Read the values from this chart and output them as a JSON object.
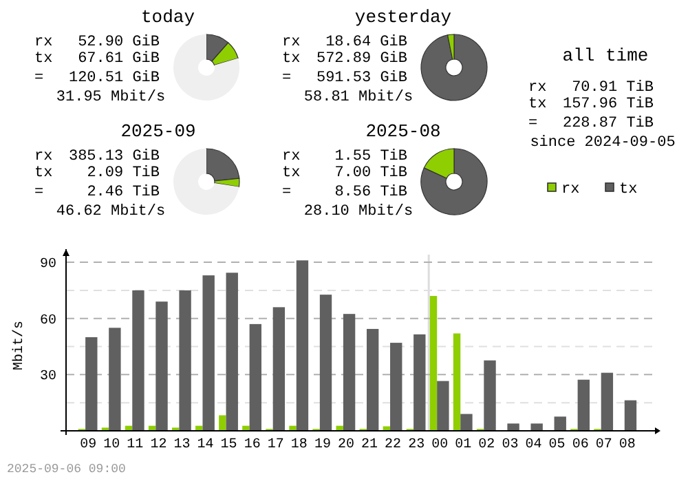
{
  "chart_data": [
    {
      "type": "donut",
      "title": "today",
      "categories": [
        null,
        null,
        null
      ],
      "values": [
        11.5,
        9.0,
        79.5
      ],
      "colors": [
        "#606060",
        "#8fce00",
        "#efefef"
      ],
      "annotations": [
        "rx 52.90 GiB",
        "tx 67.61 GiB",
        "= 120.51 GiB",
        "31.95 Mbit/s"
      ]
    },
    {
      "type": "donut",
      "title": "yesterday",
      "categories": [
        null,
        null
      ],
      "values": [
        96.85,
        3.15
      ],
      "colors": [
        "#606060",
        "#8fce00"
      ],
      "annotations": [
        "rx 18.64 GiB",
        "tx 572.89 GiB",
        "= 591.53 GiB",
        "58.81 Mbit/s"
      ]
    },
    {
      "type": "donut",
      "title": "2025-09",
      "categories": [
        null,
        null,
        null
      ],
      "values": [
        23.4,
        4.1,
        72.5
      ],
      "colors": [
        "#606060",
        "#8fce00",
        "#efefef"
      ],
      "annotations": [
        "rx 385.13 GiB",
        "tx 2.09 TiB",
        "= 2.46 TiB",
        "46.62 Mbit/s"
      ]
    },
    {
      "type": "donut",
      "title": "2025-08",
      "categories": [
        null,
        null
      ],
      "values": [
        81.9,
        18.1
      ],
      "colors": [
        "#606060",
        "#8fce00"
      ],
      "annotations": [
        "rx 1.55 TiB",
        "tx 7.00 TiB",
        "= 8.56 TiB",
        "28.10 Mbit/s"
      ]
    },
    {
      "type": "other",
      "title": "all time",
      "annotations": [
        "rx 70.91 TiB",
        "tx 157.96 TiB",
        "= 228.87 TiB",
        "since 2024-09-05"
      ]
    },
    {
      "type": "bar",
      "ylabel": "Mbit/s",
      "categories": [
        "09",
        "10",
        "11",
        "12",
        "13",
        "14",
        "15",
        "16",
        "17",
        "18",
        "19",
        "20",
        "21",
        "22",
        "23",
        "00",
        "01",
        "02",
        "03",
        "04",
        "05",
        "06",
        "07",
        "08"
      ],
      "series": [
        {
          "name": "rx",
          "color": "#8fce00",
          "values": [
            1,
            1.7,
            2.7,
            2.7,
            1.7,
            2.7,
            8.3,
            2.7,
            1,
            2.7,
            1,
            2.7,
            1,
            2.4,
            1,
            72,
            52,
            1,
            0,
            0,
            0,
            1,
            1,
            0
          ]
        },
        {
          "name": "tx",
          "color": "#606060",
          "values": [
            50,
            55,
            75,
            69,
            75,
            83,
            84.4,
            57,
            66,
            91,
            72.7,
            62.4,
            54.4,
            47,
            51.5,
            26.6,
            9,
            37.6,
            3.9,
            3.9,
            7.6,
            27.3,
            31,
            16.3
          ]
        }
      ],
      "ylim": [
        0,
        97
      ],
      "yticks": [
        {
          "value": 15,
          "label": null
        },
        30,
        {
          "value": 45,
          "label": null
        },
        60,
        {
          "value": 75,
          "label": null
        },
        90
      ],
      "grid": "y",
      "legend": "top right",
      "ref_lines": [
        {
          "axis": "x",
          "value": "00",
          "color": "#dddddd"
        }
      ],
      "annotations": [
        "2025-09-06 09:00"
      ]
    }
  ]
}
